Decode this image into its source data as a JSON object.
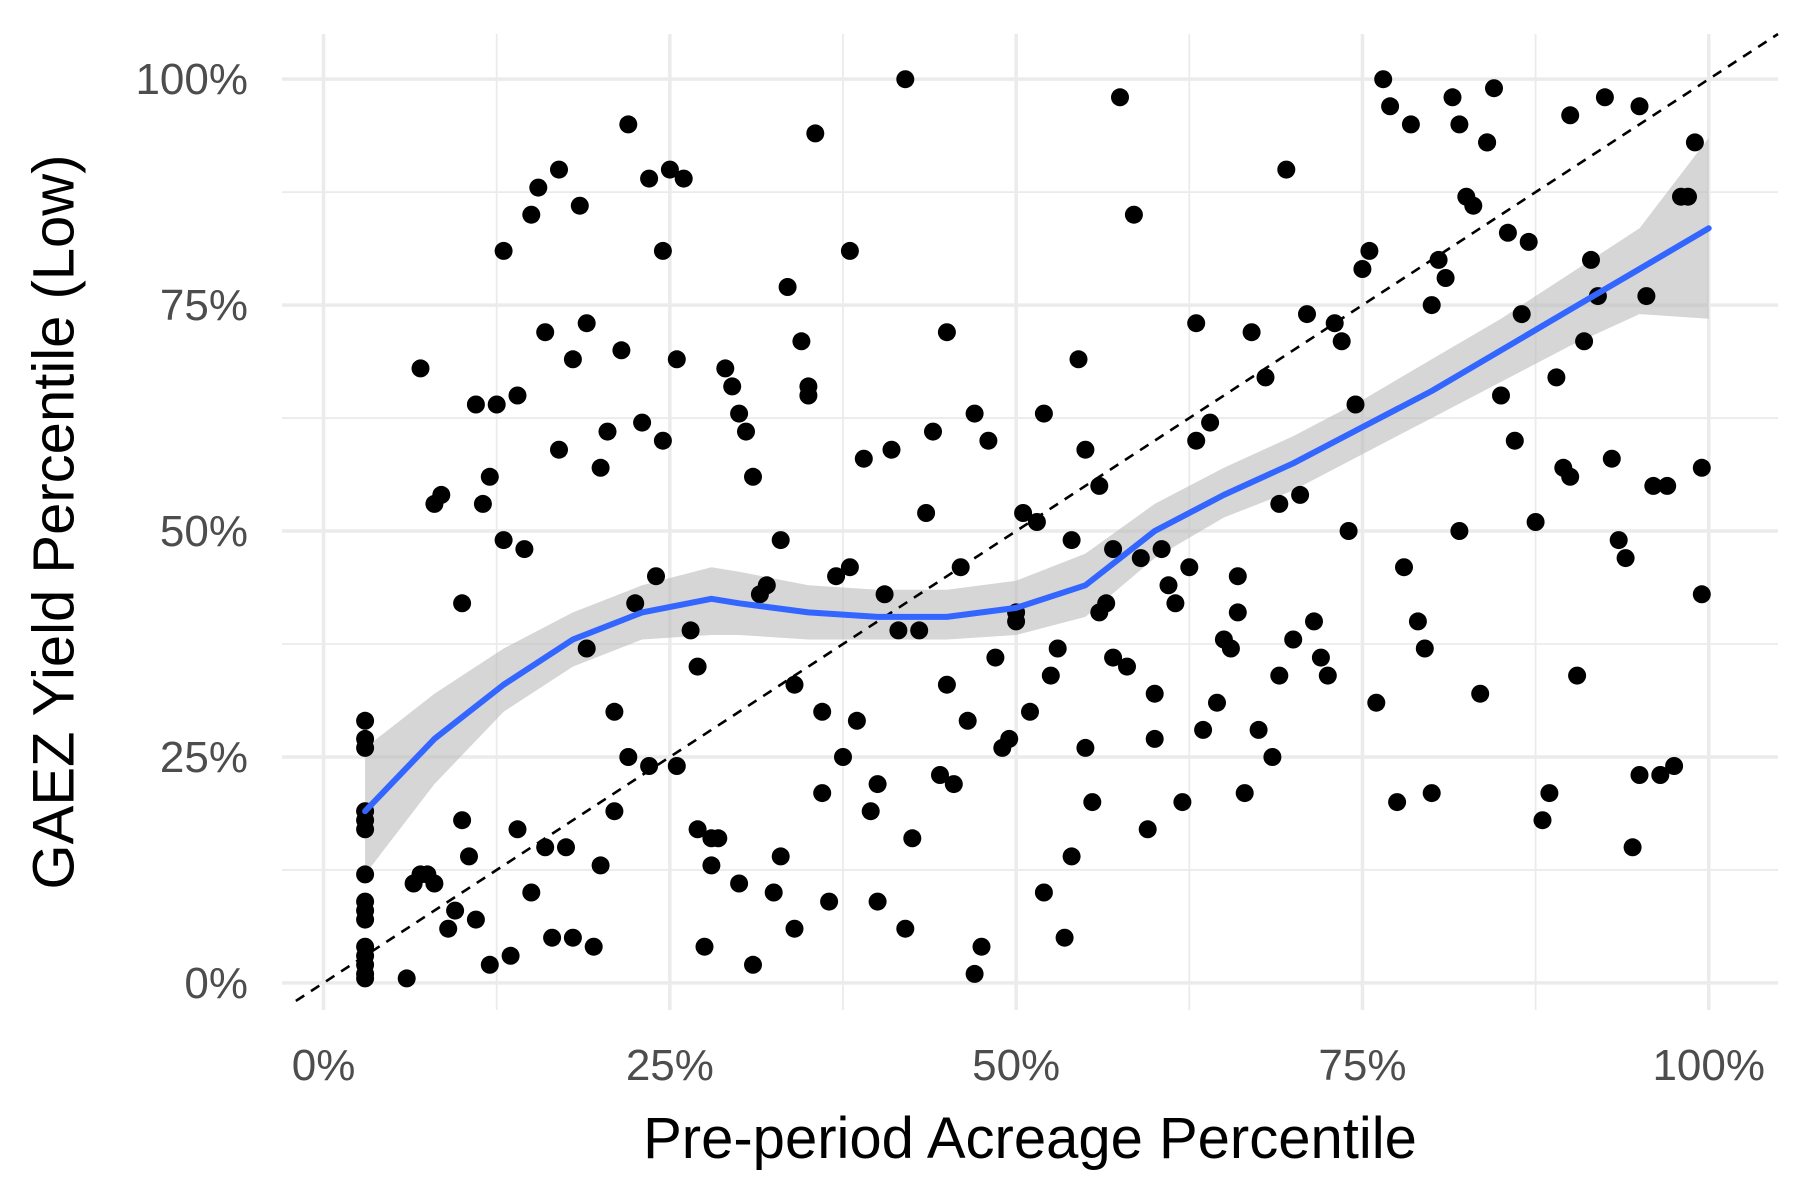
{
  "chart_data": {
    "type": "scatter",
    "xlabel": "Pre-period Acreage Percentile",
    "ylabel": "GAEZ Yield Percentile (Low)",
    "xlim": [
      -0.03,
      1.05
    ],
    "ylim": [
      -0.03,
      1.05
    ],
    "x_ticks": [
      0,
      0.25,
      0.5,
      0.75,
      1.0
    ],
    "x_tick_labels": [
      "0%",
      "25%",
      "50%",
      "75%",
      "100%"
    ],
    "y_ticks": [
      0,
      0.25,
      0.5,
      0.75,
      1.0
    ],
    "y_tick_labels": [
      "0%",
      "25%",
      "50%",
      "75%",
      "100%"
    ],
    "grid": true,
    "colors": {
      "points": "#000000",
      "smooth": "#3366ff",
      "ribbon": "#bdbdbd",
      "reference": "#000000"
    },
    "reference_line": {
      "style": "dashed",
      "slope": 1,
      "intercept": 0
    },
    "points": [
      [
        0.03,
        0.29
      ],
      [
        0.03,
        0.27
      ],
      [
        0.03,
        0.26
      ],
      [
        0.03,
        0.19
      ],
      [
        0.03,
        0.18
      ],
      [
        0.03,
        0.17
      ],
      [
        0.03,
        0.12
      ],
      [
        0.03,
        0.09
      ],
      [
        0.03,
        0.08
      ],
      [
        0.03,
        0.07
      ],
      [
        0.03,
        0.04
      ],
      [
        0.03,
        0.03
      ],
      [
        0.03,
        0.02
      ],
      [
        0.03,
        0.01
      ],
      [
        0.03,
        0.005
      ],
      [
        0.06,
        0.005
      ],
      [
        0.065,
        0.11
      ],
      [
        0.07,
        0.12
      ],
      [
        0.07,
        0.68
      ],
      [
        0.075,
        0.12
      ],
      [
        0.08,
        0.11
      ],
      [
        0.08,
        0.53
      ],
      [
        0.085,
        0.54
      ],
      [
        0.09,
        0.06
      ],
      [
        0.095,
        0.08
      ],
      [
        0.1,
        0.42
      ],
      [
        0.1,
        0.18
      ],
      [
        0.105,
        0.14
      ],
      [
        0.11,
        0.07
      ],
      [
        0.11,
        0.64
      ],
      [
        0.115,
        0.53
      ],
      [
        0.12,
        0.56
      ],
      [
        0.12,
        0.02
      ],
      [
        0.125,
        0.64
      ],
      [
        0.13,
        0.49
      ],
      [
        0.13,
        0.81
      ],
      [
        0.135,
        0.03
      ],
      [
        0.14,
        0.17
      ],
      [
        0.14,
        0.65
      ],
      [
        0.145,
        0.48
      ],
      [
        0.15,
        0.1
      ],
      [
        0.15,
        0.85
      ],
      [
        0.155,
        0.88
      ],
      [
        0.16,
        0.15
      ],
      [
        0.16,
        0.72
      ],
      [
        0.165,
        0.05
      ],
      [
        0.17,
        0.9
      ],
      [
        0.17,
        0.59
      ],
      [
        0.175,
        0.15
      ],
      [
        0.18,
        0.05
      ],
      [
        0.18,
        0.69
      ],
      [
        0.185,
        0.86
      ],
      [
        0.19,
        0.37
      ],
      [
        0.19,
        0.73
      ],
      [
        0.195,
        0.04
      ],
      [
        0.2,
        0.57
      ],
      [
        0.2,
        0.13
      ],
      [
        0.205,
        0.61
      ],
      [
        0.21,
        0.19
      ],
      [
        0.21,
        0.3
      ],
      [
        0.215,
        0.7
      ],
      [
        0.22,
        0.95
      ],
      [
        0.22,
        0.25
      ],
      [
        0.225,
        0.42
      ],
      [
        0.23,
        0.62
      ],
      [
        0.235,
        0.89
      ],
      [
        0.235,
        0.24
      ],
      [
        0.24,
        0.45
      ],
      [
        0.245,
        0.81
      ],
      [
        0.245,
        0.6
      ],
      [
        0.25,
        0.9
      ],
      [
        0.255,
        0.69
      ],
      [
        0.255,
        0.24
      ],
      [
        0.26,
        0.89
      ],
      [
        0.265,
        0.39
      ],
      [
        0.27,
        0.35
      ],
      [
        0.27,
        0.17
      ],
      [
        0.275,
        0.04
      ],
      [
        0.28,
        0.13
      ],
      [
        0.28,
        0.16
      ],
      [
        0.285,
        0.16
      ],
      [
        0.29,
        0.68
      ],
      [
        0.295,
        0.66
      ],
      [
        0.3,
        0.63
      ],
      [
        0.3,
        0.11
      ],
      [
        0.305,
        0.61
      ],
      [
        0.31,
        0.02
      ],
      [
        0.31,
        0.56
      ],
      [
        0.315,
        0.43
      ],
      [
        0.32,
        0.44
      ],
      [
        0.325,
        0.1
      ],
      [
        0.33,
        0.14
      ],
      [
        0.33,
        0.49
      ],
      [
        0.335,
        0.77
      ],
      [
        0.34,
        0.33
      ],
      [
        0.34,
        0.06
      ],
      [
        0.345,
        0.71
      ],
      [
        0.35,
        0.65
      ],
      [
        0.35,
        0.66
      ],
      [
        0.355,
        0.94
      ],
      [
        0.36,
        0.3
      ],
      [
        0.36,
        0.21
      ],
      [
        0.365,
        0.09
      ],
      [
        0.37,
        0.45
      ],
      [
        0.375,
        0.25
      ],
      [
        0.38,
        0.81
      ],
      [
        0.38,
        0.46
      ],
      [
        0.385,
        0.29
      ],
      [
        0.39,
        0.58
      ],
      [
        0.395,
        0.19
      ],
      [
        0.4,
        0.09
      ],
      [
        0.4,
        0.22
      ],
      [
        0.405,
        0.43
      ],
      [
        0.41,
        0.59
      ],
      [
        0.415,
        0.39
      ],
      [
        0.42,
        0.06
      ],
      [
        0.42,
        1.0
      ],
      [
        0.425,
        0.16
      ],
      [
        0.43,
        0.39
      ],
      [
        0.435,
        0.52
      ],
      [
        0.44,
        0.61
      ],
      [
        0.445,
        0.23
      ],
      [
        0.45,
        0.33
      ],
      [
        0.45,
        0.72
      ],
      [
        0.455,
        0.22
      ],
      [
        0.46,
        0.46
      ],
      [
        0.465,
        0.29
      ],
      [
        0.47,
        0.63
      ],
      [
        0.47,
        0.01
      ],
      [
        0.475,
        0.04
      ],
      [
        0.48,
        0.6
      ],
      [
        0.485,
        0.36
      ],
      [
        0.49,
        0.26
      ],
      [
        0.495,
        0.27
      ],
      [
        0.5,
        0.4
      ],
      [
        0.5,
        0.41
      ],
      [
        0.505,
        0.52
      ],
      [
        0.51,
        0.3
      ],
      [
        0.515,
        0.51
      ],
      [
        0.52,
        0.1
      ],
      [
        0.52,
        0.63
      ],
      [
        0.525,
        0.34
      ],
      [
        0.53,
        0.37
      ],
      [
        0.535,
        0.05
      ],
      [
        0.54,
        0.49
      ],
      [
        0.54,
        0.14
      ],
      [
        0.545,
        0.69
      ],
      [
        0.55,
        0.59
      ],
      [
        0.55,
        0.26
      ],
      [
        0.555,
        0.2
      ],
      [
        0.56,
        0.41
      ],
      [
        0.56,
        0.55
      ],
      [
        0.565,
        0.42
      ],
      [
        0.57,
        0.48
      ],
      [
        0.57,
        0.36
      ],
      [
        0.575,
        0.98
      ],
      [
        0.58,
        0.35
      ],
      [
        0.585,
        0.85
      ],
      [
        0.59,
        0.47
      ],
      [
        0.595,
        0.17
      ],
      [
        0.6,
        0.32
      ],
      [
        0.6,
        0.27
      ],
      [
        0.605,
        0.48
      ],
      [
        0.61,
        0.44
      ],
      [
        0.615,
        0.42
      ],
      [
        0.62,
        0.2
      ],
      [
        0.625,
        0.46
      ],
      [
        0.63,
        0.6
      ],
      [
        0.63,
        0.73
      ],
      [
        0.635,
        0.28
      ],
      [
        0.64,
        0.62
      ],
      [
        0.645,
        0.31
      ],
      [
        0.65,
        0.38
      ],
      [
        0.655,
        0.37
      ],
      [
        0.66,
        0.45
      ],
      [
        0.66,
        0.41
      ],
      [
        0.665,
        0.21
      ],
      [
        0.67,
        0.72
      ],
      [
        0.675,
        0.28
      ],
      [
        0.68,
        0.67
      ],
      [
        0.685,
        0.25
      ],
      [
        0.69,
        0.34
      ],
      [
        0.69,
        0.53
      ],
      [
        0.695,
        0.9
      ],
      [
        0.7,
        0.38
      ],
      [
        0.705,
        0.54
      ],
      [
        0.71,
        0.74
      ],
      [
        0.715,
        0.4
      ],
      [
        0.72,
        0.36
      ],
      [
        0.725,
        0.34
      ],
      [
        0.73,
        0.73
      ],
      [
        0.735,
        0.71
      ],
      [
        0.74,
        0.5
      ],
      [
        0.745,
        0.64
      ],
      [
        0.75,
        0.79
      ],
      [
        0.755,
        0.81
      ],
      [
        0.76,
        0.31
      ],
      [
        0.765,
        1.0
      ],
      [
        0.77,
        0.97
      ],
      [
        0.775,
        0.2
      ],
      [
        0.78,
        0.46
      ],
      [
        0.785,
        0.95
      ],
      [
        0.79,
        0.4
      ],
      [
        0.795,
        0.37
      ],
      [
        0.8,
        0.75
      ],
      [
        0.8,
        0.21
      ],
      [
        0.805,
        0.8
      ],
      [
        0.81,
        0.78
      ],
      [
        0.815,
        0.98
      ],
      [
        0.82,
        0.95
      ],
      [
        0.82,
        0.5
      ],
      [
        0.825,
        0.87
      ],
      [
        0.83,
        0.86
      ],
      [
        0.835,
        0.32
      ],
      [
        0.84,
        0.93
      ],
      [
        0.84,
        0.93
      ],
      [
        0.845,
        0.99
      ],
      [
        0.85,
        0.65
      ],
      [
        0.855,
        0.83
      ],
      [
        0.86,
        0.6
      ],
      [
        0.865,
        0.74
      ],
      [
        0.87,
        0.82
      ],
      [
        0.875,
        0.51
      ],
      [
        0.88,
        0.18
      ],
      [
        0.885,
        0.21
      ],
      [
        0.89,
        0.67
      ],
      [
        0.895,
        0.57
      ],
      [
        0.9,
        0.56
      ],
      [
        0.9,
        0.96
      ],
      [
        0.905,
        0.34
      ],
      [
        0.91,
        0.71
      ],
      [
        0.915,
        0.8
      ],
      [
        0.92,
        0.76
      ],
      [
        0.925,
        0.98
      ],
      [
        0.93,
        0.58
      ],
      [
        0.935,
        0.49
      ],
      [
        0.94,
        0.47
      ],
      [
        0.945,
        0.15
      ],
      [
        0.95,
        0.23
      ],
      [
        0.95,
        0.97
      ],
      [
        0.955,
        0.76
      ],
      [
        0.96,
        0.55
      ],
      [
        0.965,
        0.23
      ],
      [
        0.97,
        0.55
      ],
      [
        0.975,
        0.24
      ],
      [
        0.98,
        0.87
      ],
      [
        0.985,
        0.87
      ],
      [
        0.99,
        0.93
      ],
      [
        0.995,
        0.43
      ],
      [
        0.995,
        0.57
      ]
    ],
    "smooth": {
      "x": [
        0.03,
        0.08,
        0.13,
        0.18,
        0.23,
        0.28,
        0.3,
        0.35,
        0.4,
        0.45,
        0.5,
        0.55,
        0.6,
        0.65,
        0.7,
        0.75,
        0.8,
        0.85,
        0.9,
        0.95,
        1.0
      ],
      "y": [
        0.19,
        0.27,
        0.33,
        0.38,
        0.41,
        0.425,
        0.42,
        0.41,
        0.405,
        0.405,
        0.415,
        0.44,
        0.5,
        0.54,
        0.575,
        0.615,
        0.655,
        0.7,
        0.745,
        0.79,
        0.835
      ],
      "lower": [
        0.12,
        0.22,
        0.3,
        0.35,
        0.38,
        0.385,
        0.385,
        0.38,
        0.38,
        0.38,
        0.385,
        0.405,
        0.47,
        0.515,
        0.545,
        0.585,
        0.625,
        0.665,
        0.705,
        0.74,
        0.735
      ],
      "upper": [
        0.26,
        0.32,
        0.37,
        0.41,
        0.44,
        0.46,
        0.455,
        0.44,
        0.435,
        0.435,
        0.445,
        0.475,
        0.53,
        0.57,
        0.605,
        0.645,
        0.69,
        0.735,
        0.785,
        0.835,
        0.935
      ]
    }
  }
}
